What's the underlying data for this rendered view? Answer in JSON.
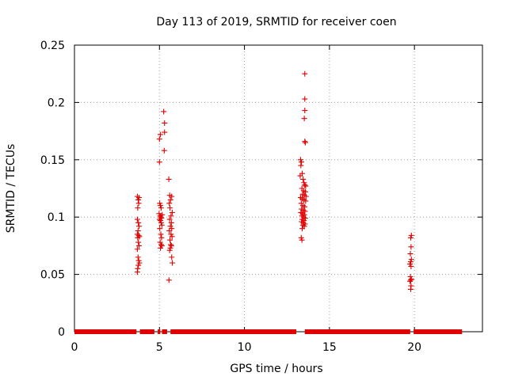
{
  "chart_data": {
    "type": "scatter",
    "title": "Day 113 of 2019, SRMTID for receiver coen",
    "xlabel": "GPS time / hours",
    "ylabel": "SRMTID / TECUs",
    "xlim": [
      0,
      24
    ],
    "ylim": [
      0,
      0.25
    ],
    "xticks": [
      0,
      5,
      10,
      15,
      20
    ],
    "yticks": [
      0,
      0.05,
      0.1,
      0.15,
      0.2,
      0.25
    ],
    "xtick_labels": [
      "0",
      "5",
      "10",
      "15",
      "20"
    ],
    "ytick_labels": [
      "0",
      "0.05",
      "0.1",
      "0.15",
      "0.2",
      "0.25"
    ],
    "grid": true,
    "marker": "+",
    "color": "#e00000",
    "zero_segments": [
      [
        0.0,
        3.65
      ],
      [
        3.85,
        4.7
      ],
      [
        4.9,
        5.05
      ],
      [
        5.15,
        5.45
      ],
      [
        5.65,
        13.05
      ],
      [
        13.55,
        19.75
      ],
      [
        19.95,
        22.8
      ]
    ],
    "series": [
      {
        "name": "SRMTID",
        "points": [
          [
            3.7,
            0.118
          ],
          [
            3.75,
            0.115
          ],
          [
            3.8,
            0.117
          ],
          [
            3.72,
            0.108
          ],
          [
            3.78,
            0.112
          ],
          [
            3.7,
            0.098
          ],
          [
            3.76,
            0.095
          ],
          [
            3.8,
            0.092
          ],
          [
            3.74,
            0.088
          ],
          [
            3.7,
            0.085
          ],
          [
            3.78,
            0.084
          ],
          [
            3.82,
            0.083
          ],
          [
            3.72,
            0.082
          ],
          [
            3.76,
            0.078
          ],
          [
            3.8,
            0.075
          ],
          [
            3.7,
            0.072
          ],
          [
            3.74,
            0.065
          ],
          [
            3.78,
            0.062
          ],
          [
            3.82,
            0.06
          ],
          [
            3.76,
            0.058
          ],
          [
            3.72,
            0.055
          ],
          [
            3.7,
            0.052
          ],
          [
            5.0,
            0.168
          ],
          [
            5.05,
            0.172
          ],
          [
            5.0,
            0.148
          ],
          [
            5.02,
            0.112
          ],
          [
            5.06,
            0.11
          ],
          [
            5.1,
            0.108
          ],
          [
            4.98,
            0.103
          ],
          [
            5.04,
            0.101
          ],
          [
            5.08,
            0.1
          ],
          [
            5.12,
            0.099
          ],
          [
            5.0,
            0.098
          ],
          [
            5.06,
            0.097
          ],
          [
            5.1,
            0.095
          ],
          [
            5.14,
            0.093
          ],
          [
            5.02,
            0.09
          ],
          [
            5.08,
            0.085
          ],
          [
            5.12,
            0.082
          ],
          [
            5.04,
            0.078
          ],
          [
            5.1,
            0.076
          ],
          [
            5.14,
            0.075
          ],
          [
            5.06,
            0.073
          ],
          [
            5.16,
            0.102
          ],
          [
            5.25,
            0.192
          ],
          [
            5.3,
            0.182
          ],
          [
            5.3,
            0.174
          ],
          [
            5.28,
            0.158
          ],
          [
            5.55,
            0.133
          ],
          [
            5.6,
            0.119
          ],
          [
            5.72,
            0.118
          ],
          [
            5.65,
            0.115
          ],
          [
            5.58,
            0.112
          ],
          [
            5.62,
            0.108
          ],
          [
            5.75,
            0.104
          ],
          [
            5.68,
            0.101
          ],
          [
            5.6,
            0.098
          ],
          [
            5.7,
            0.095
          ],
          [
            5.64,
            0.092
          ],
          [
            5.72,
            0.09
          ],
          [
            5.58,
            0.088
          ],
          [
            5.68,
            0.085
          ],
          [
            5.74,
            0.083
          ],
          [
            5.62,
            0.08
          ],
          [
            5.66,
            0.076
          ],
          [
            5.7,
            0.075
          ],
          [
            5.64,
            0.073
          ],
          [
            5.6,
            0.071
          ],
          [
            5.72,
            0.065
          ],
          [
            5.76,
            0.06
          ],
          [
            5.56,
            0.045
          ],
          [
            13.3,
            0.15
          ],
          [
            13.35,
            0.148
          ],
          [
            13.32,
            0.145
          ],
          [
            13.4,
            0.138
          ],
          [
            13.28,
            0.136
          ],
          [
            13.45,
            0.133
          ],
          [
            13.5,
            0.13
          ],
          [
            13.55,
            0.128
          ],
          [
            13.6,
            0.127
          ],
          [
            13.38,
            0.125
          ],
          [
            13.48,
            0.123
          ],
          [
            13.58,
            0.122
          ],
          [
            13.42,
            0.12
          ],
          [
            13.52,
            0.119
          ],
          [
            13.62,
            0.118
          ],
          [
            13.3,
            0.117
          ],
          [
            13.4,
            0.116
          ],
          [
            13.5,
            0.115
          ],
          [
            13.6,
            0.114
          ],
          [
            13.34,
            0.112
          ],
          [
            13.44,
            0.11
          ],
          [
            13.54,
            0.109
          ],
          [
            13.36,
            0.107
          ],
          [
            13.46,
            0.106
          ],
          [
            13.56,
            0.105
          ],
          [
            13.32,
            0.104
          ],
          [
            13.42,
            0.103
          ],
          [
            13.52,
            0.102
          ],
          [
            13.38,
            0.101
          ],
          [
            13.48,
            0.1
          ],
          [
            13.58,
            0.099
          ],
          [
            13.4,
            0.098
          ],
          [
            13.5,
            0.097
          ],
          [
            13.36,
            0.096
          ],
          [
            13.46,
            0.095
          ],
          [
            13.56,
            0.094
          ],
          [
            13.44,
            0.093
          ],
          [
            13.52,
            0.092
          ],
          [
            13.4,
            0.09
          ],
          [
            13.34,
            0.082
          ],
          [
            13.38,
            0.08
          ],
          [
            13.55,
            0.225
          ],
          [
            13.55,
            0.203
          ],
          [
            13.55,
            0.193
          ],
          [
            13.52,
            0.186
          ],
          [
            13.55,
            0.166
          ],
          [
            13.58,
            0.165
          ],
          [
            19.82,
            0.084
          ],
          [
            19.78,
            0.082
          ],
          [
            19.8,
            0.074
          ],
          [
            19.76,
            0.068
          ],
          [
            19.82,
            0.063
          ],
          [
            19.78,
            0.061
          ],
          [
            19.74,
            0.059
          ],
          [
            19.8,
            0.057
          ],
          [
            19.76,
            0.048
          ],
          [
            19.82,
            0.046
          ],
          [
            19.78,
            0.045
          ],
          [
            19.74,
            0.044
          ],
          [
            19.8,
            0.04
          ],
          [
            19.78,
            0.037
          ]
        ]
      }
    ]
  }
}
